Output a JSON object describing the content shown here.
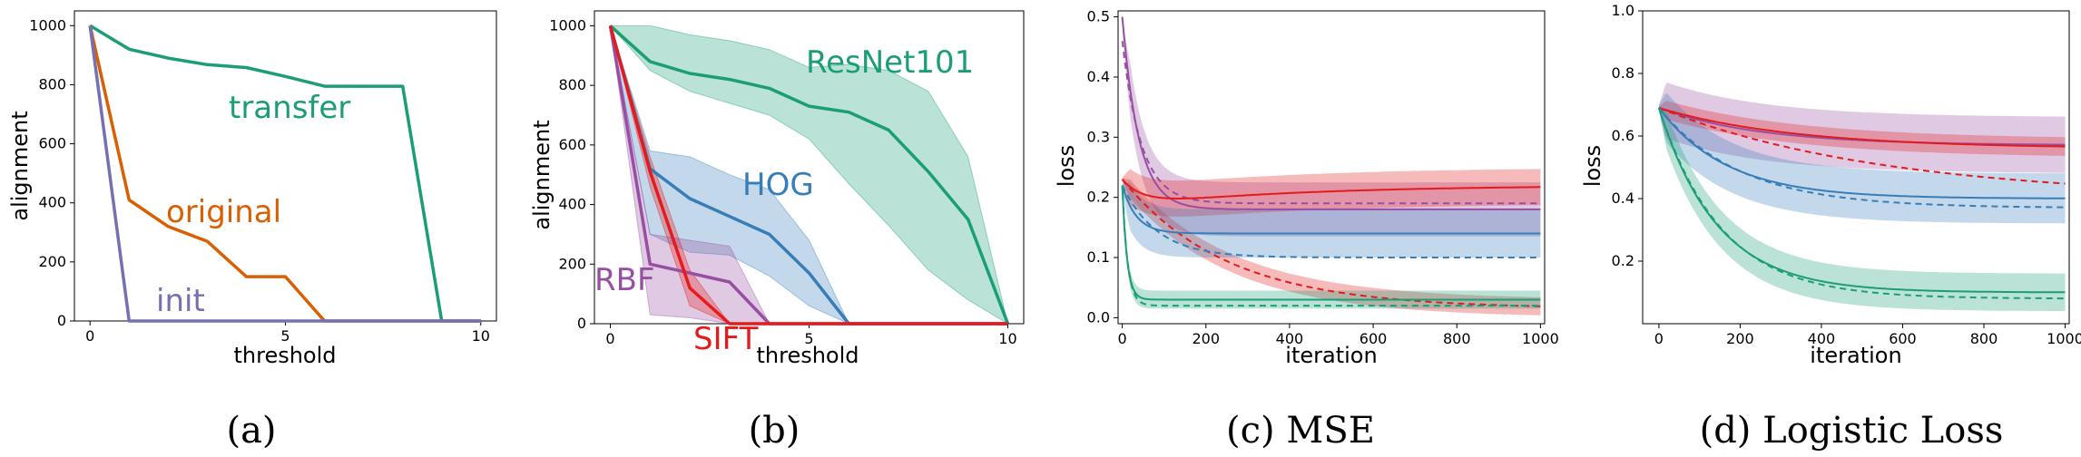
{
  "colors": {
    "green": "#1b9e77",
    "orange": "#d95f02",
    "purple": "#7570b3",
    "blue": "#377eb8",
    "red": "#e41a1c",
    "magenta": "#984ea3",
    "gridframe": "#000000"
  },
  "chart_data": [
    {
      "type": "line",
      "panel": "a",
      "caption": "(a)",
      "xlabel": "threshold",
      "ylabel": "alignment",
      "xlim": [
        -0.4,
        10.4
      ],
      "ylim": [
        0,
        1050
      ],
      "xticks": [
        0,
        5,
        10
      ],
      "yticks": [
        0,
        200,
        400,
        600,
        800,
        1000
      ],
      "series": [
        {
          "name": "transfer",
          "color": "green",
          "x": [
            0,
            1,
            2,
            3,
            4,
            5,
            6,
            7,
            8,
            9,
            10
          ],
          "y": [
            1000,
            920,
            890,
            868,
            858,
            828,
            795,
            795,
            795,
            0,
            0
          ]
        },
        {
          "name": "original",
          "color": "orange",
          "x": [
            0,
            1,
            2,
            3,
            4,
            5,
            6,
            7,
            8,
            9,
            10
          ],
          "y": [
            1000,
            410,
            320,
            270,
            150,
            150,
            0,
            0,
            0,
            0,
            0
          ]
        },
        {
          "name": "init",
          "color": "purple",
          "x": [
            0,
            1,
            2,
            3,
            4,
            5,
            6,
            7,
            8,
            9,
            10
          ],
          "y": [
            1000,
            0,
            0,
            0,
            0,
            0,
            0,
            0,
            0,
            0,
            0
          ]
        }
      ],
      "labels": [
        {
          "text": "transfer",
          "color": "green"
        },
        {
          "text": "original",
          "color": "orange"
        },
        {
          "text": "init",
          "color": "purple"
        }
      ]
    },
    {
      "type": "area",
      "panel": "b",
      "caption": "(b)",
      "xlabel": "threshold",
      "ylabel": "alignment",
      "xlim": [
        -0.4,
        10.4
      ],
      "ylim": [
        0,
        1050
      ],
      "xticks": [
        0,
        5,
        10
      ],
      "yticks": [
        0,
        200,
        400,
        600,
        800,
        1000
      ],
      "series": [
        {
          "name": "ResNet101",
          "color": "green",
          "x": [
            0,
            1,
            2,
            3,
            4,
            5,
            6,
            7,
            8,
            9,
            10
          ],
          "y": [
            1000,
            880,
            840,
            820,
            790,
            730,
            710,
            650,
            510,
            350,
            0
          ],
          "lower": [
            1000,
            850,
            780,
            740,
            700,
            620,
            470,
            330,
            180,
            80,
            0
          ],
          "upper": [
            1000,
            1000,
            970,
            950,
            920,
            860,
            870,
            850,
            780,
            560,
            0
          ]
        },
        {
          "name": "HOG",
          "color": "blue",
          "x": [
            0,
            1,
            2,
            3,
            4,
            5,
            6,
            7,
            8,
            9,
            10
          ],
          "y": [
            1000,
            520,
            420,
            360,
            300,
            170,
            0,
            0,
            0,
            0,
            0
          ],
          "lower": [
            1000,
            300,
            240,
            230,
            160,
            60,
            0,
            0,
            0,
            0,
            0
          ],
          "upper": [
            1000,
            580,
            560,
            500,
            450,
            280,
            0,
            0,
            0,
            0,
            0
          ]
        },
        {
          "name": "RBF",
          "color": "magenta",
          "x": [
            0,
            1,
            2,
            3,
            4,
            5,
            6,
            7,
            8,
            9,
            10
          ],
          "y": [
            1000,
            200,
            170,
            140,
            0,
            0,
            0,
            0,
            0,
            0,
            0
          ],
          "lower": [
            1000,
            30,
            20,
            0,
            0,
            0,
            0,
            0,
            0,
            0,
            0
          ],
          "upper": [
            1000,
            300,
            280,
            260,
            0,
            0,
            0,
            0,
            0,
            0,
            0
          ]
        },
        {
          "name": "SIFT",
          "color": "red",
          "x": [
            0,
            1,
            2,
            3,
            4,
            5,
            6,
            7,
            8,
            9,
            10
          ],
          "y": [
            1000,
            510,
            120,
            0,
            0,
            0,
            0,
            0,
            0,
            0,
            0
          ],
          "lower": [
            1000,
            460,
            60,
            0,
            0,
            0,
            0,
            0,
            0,
            0,
            0
          ],
          "upper": [
            1000,
            560,
            180,
            0,
            0,
            0,
            0,
            0,
            0,
            0,
            0
          ]
        }
      ],
      "labels": [
        {
          "text": "ResNet101",
          "color": "green"
        },
        {
          "text": "HOG",
          "color": "blue"
        },
        {
          "text": "RBF",
          "color": "magenta"
        },
        {
          "text": "SIFT",
          "color": "red"
        }
      ]
    },
    {
      "type": "line",
      "panel": "c",
      "caption": "(c) MSE",
      "xlabel": "iteration",
      "ylabel": "loss",
      "xlim": [
        -10,
        1010
      ],
      "ylim": [
        -0.01,
        0.51
      ],
      "xticks": [
        0,
        200,
        400,
        600,
        800,
        1000
      ],
      "yticks": [
        0.0,
        0.1,
        0.2,
        0.3,
        0.4,
        0.5
      ],
      "curves": [
        {
          "color": "magenta",
          "dashed": false,
          "start": 0.5,
          "end": 0.18,
          "k": 0.025,
          "band": 0.045
        },
        {
          "color": "magenta",
          "dashed": true,
          "start": 0.46,
          "end": 0.19,
          "k": 0.022,
          "band": 0.0
        },
        {
          "color": "red",
          "dashed": false,
          "start": 0.23,
          "end": 0.22,
          "dip": 0.185,
          "k": 0.02,
          "band": 0.03
        },
        {
          "color": "red",
          "dashed": true,
          "start": 0.23,
          "end": 0.015,
          "k": 0.004,
          "band": 0.015
        },
        {
          "color": "blue",
          "dashed": false,
          "start": 0.22,
          "end": 0.14,
          "k": 0.03,
          "band": 0.04
        },
        {
          "color": "blue",
          "dashed": true,
          "start": 0.22,
          "end": 0.1,
          "k": 0.012,
          "band": 0.0
        },
        {
          "color": "green",
          "dashed": false,
          "start": 0.22,
          "end": 0.03,
          "k": 0.09,
          "band": 0.015
        },
        {
          "color": "green",
          "dashed": true,
          "start": 0.22,
          "end": 0.02,
          "k": 0.08,
          "band": 0.0
        }
      ]
    },
    {
      "type": "line",
      "panel": "d",
      "caption": "(d) Logistic Loss",
      "xlabel": "iteration",
      "ylabel": "loss",
      "xlim": [
        -40,
        1010
      ],
      "ylim": [
        0.0,
        1.0
      ],
      "xticks": [
        0,
        200,
        400,
        600,
        800,
        1000
      ],
      "yticks": [
        0.2,
        0.4,
        0.6,
        0.8,
        1.0
      ],
      "curves": [
        {
          "color": "magenta",
          "dashed": false,
          "start": 0.69,
          "end": 0.57,
          "k": 0.004,
          "band": 0.09
        },
        {
          "color": "red",
          "dashed": false,
          "start": 0.69,
          "end": 0.56,
          "k": 0.003,
          "band": 0.03
        },
        {
          "color": "red",
          "dashed": true,
          "start": 0.69,
          "end": 0.4,
          "k": 0.0018,
          "band": 0.0
        },
        {
          "color": "blue",
          "dashed": false,
          "start": 0.69,
          "end": 0.4,
          "k": 0.006,
          "band": 0.08
        },
        {
          "color": "blue",
          "dashed": true,
          "start": 0.69,
          "end": 0.37,
          "k": 0.005,
          "band": 0.0
        },
        {
          "color": "green",
          "dashed": false,
          "start": 0.69,
          "end": 0.1,
          "k": 0.007,
          "band": 0.06
        },
        {
          "color": "green",
          "dashed": true,
          "start": 0.69,
          "end": 0.08,
          "k": 0.0065,
          "band": 0.0
        }
      ]
    }
  ]
}
